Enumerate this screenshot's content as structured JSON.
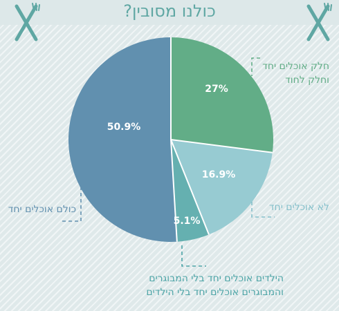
{
  "title": "כולנו מסובין?",
  "icons": [
    "fork-knife-icon",
    "fork-knife-icon"
  ],
  "chart_data": {
    "type": "pie",
    "title": "כולנו מסובין?",
    "slices": [
      {
        "label": "חלק אוכלים יחד וחלק לחוד",
        "value": 27,
        "display": "27%",
        "color": "#62ad87",
        "label_color": "#62ad87"
      },
      {
        "label": "לא אוכלים יחד",
        "value": 16.9,
        "display": "16.9%",
        "color": "#97cbd2",
        "label_color": "#84bfca"
      },
      {
        "label": "הילדים אוכלים יחד בלי המבוגרים והמבוגרים אוכלים יחד בלי הילדים",
        "value": 5.1,
        "display": "5.1%",
        "color": "#65b0b0",
        "label_color": "#4ca4a6"
      },
      {
        "label": "כולם אוכלים יחד",
        "value": 50.9,
        "display": "50.9%",
        "color": "#6190af",
        "label_color": "#6190af"
      }
    ]
  },
  "labels": {
    "slice0": [
      "חלק אוכלים יחד",
      "וחלק לחוד"
    ],
    "slice1": [
      "לא אוכלים יחד"
    ],
    "slice2": [
      "הילדים אוכלים יחד בלי המבוגרים",
      "והמבוגרים אוכלים יחד בלי הילדים"
    ],
    "slice3": [
      "כולם אוכלים יחד"
    ]
  }
}
